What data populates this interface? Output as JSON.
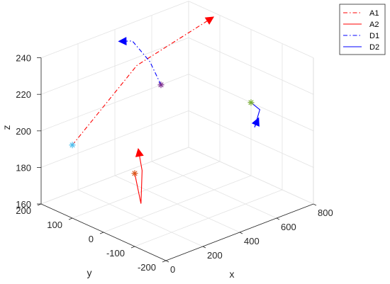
{
  "chart_data": {
    "type": "line3d",
    "xlabel": "x",
    "ylabel": "y",
    "zlabel": "z",
    "xlim": [
      0,
      800
    ],
    "ylim": [
      -200,
      200
    ],
    "zlim": [
      160,
      240
    ],
    "xticks": [
      0,
      200,
      400,
      600,
      800
    ],
    "yticks": [
      -200,
      -100,
      0,
      100,
      200
    ],
    "zticks": [
      160,
      180,
      200,
      220,
      240
    ],
    "grid": true,
    "legend_position": "top-right",
    "series": [
      {
        "name": "A1",
        "color": "#ff0000",
        "dash": "dashdot",
        "points": [
          [
            0,
            100,
            200
          ],
          [
            350,
            100,
            230
          ],
          [
            750,
            100,
            240
          ]
        ],
        "start_marker": "asterisk",
        "start_marker_color": "#4dbeee",
        "end_marker": "triangle"
      },
      {
        "name": "A2",
        "color": "#ff0000",
        "dash": "solid",
        "points": [
          [
            0,
            -100,
            200
          ],
          [
            0,
            -120,
            185
          ],
          [
            40,
            -100,
            200
          ],
          [
            90,
            -60,
            205
          ]
        ],
        "start_marker": "asterisk",
        "start_marker_color": "#d95319",
        "end_marker": "triangle"
      },
      {
        "name": "D1",
        "color": "#0000ff",
        "dash": "dashdot",
        "points": [
          [
            650,
            200,
            200
          ],
          [
            590,
            200,
            215
          ],
          [
            495,
            200,
            230
          ],
          [
            440,
            200,
            232
          ]
        ],
        "start_marker": "asterisk",
        "start_marker_color": "#7e2f8e",
        "end_marker": "triangle"
      },
      {
        "name": "D2",
        "color": "#0000ff",
        "dash": "solid",
        "points": [
          [
            800,
            0,
            200
          ],
          [
            780,
            -40,
            200
          ],
          [
            650,
            -100,
            200
          ],
          [
            580,
            -150,
            210
          ]
        ],
        "start_marker": "asterisk",
        "start_marker_color": "#77ac30",
        "end_marker": "triangle"
      }
    ]
  }
}
